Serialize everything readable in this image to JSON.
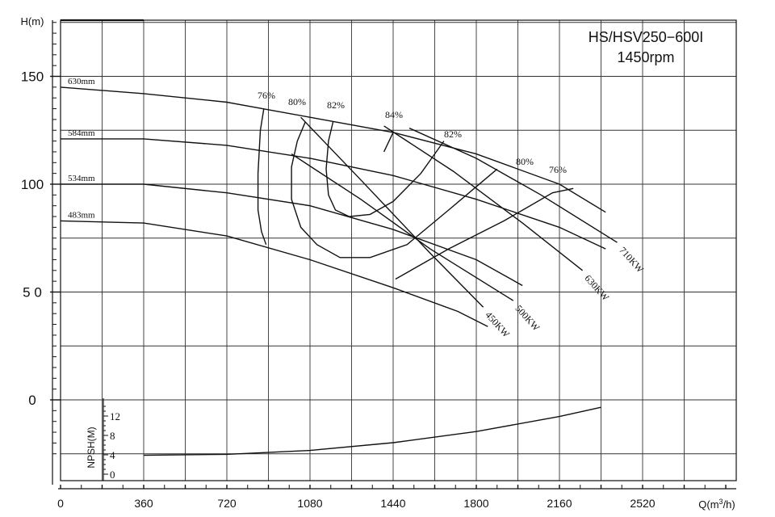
{
  "chart_data": {
    "type": "line",
    "title": "HS/HSV250−600I",
    "subtitle": "1450rpm",
    "ylabel": "H(m)",
    "x_axis": {
      "label_prefix": "Q(m",
      "label_sup": "3",
      "label_suffix": "/h)",
      "range": [
        0,
        2880
      ],
      "ticks": [
        0,
        360,
        720,
        1080,
        1440,
        1800,
        2160,
        2520
      ],
      "tick_labels": [
        "0",
        "360",
        "720",
        "1080",
        "1440",
        "1800",
        "2160",
        "2520"
      ]
    },
    "y_axis": {
      "range": [
        -37,
        176
      ],
      "ticks": [
        0,
        50,
        100,
        150
      ],
      "tick_labels": [
        "0",
        "5 0",
        "100",
        "150"
      ]
    },
    "npsh_axis": {
      "label": "NPSH(M)",
      "ticks": [
        0,
        4,
        8,
        12
      ],
      "tick_labels": [
        "0",
        "4",
        "8",
        "12"
      ]
    },
    "grid": true,
    "head_curves": [
      {
        "name": "630mm",
        "points": [
          [
            0,
            145
          ],
          [
            360,
            142
          ],
          [
            720,
            138
          ],
          [
            1080,
            131
          ],
          [
            1440,
            124
          ],
          [
            1800,
            114
          ],
          [
            2160,
            100
          ],
          [
            2360,
            87
          ]
        ]
      },
      {
        "name": "584mm",
        "points": [
          [
            0,
            121
          ],
          [
            360,
            121
          ],
          [
            720,
            118
          ],
          [
            1080,
            112
          ],
          [
            1440,
            104
          ],
          [
            1800,
            93
          ],
          [
            2160,
            80
          ],
          [
            2360,
            70
          ]
        ]
      },
      {
        "name": "534mm",
        "points": [
          [
            0,
            100
          ],
          [
            360,
            100
          ],
          [
            720,
            96
          ],
          [
            1080,
            90
          ],
          [
            1440,
            79
          ],
          [
            1800,
            65
          ],
          [
            2000,
            53
          ]
        ]
      },
      {
        "name": "483mm",
        "points": [
          [
            0,
            83
          ],
          [
            360,
            82
          ],
          [
            720,
            76
          ],
          [
            1080,
            65
          ],
          [
            1440,
            52
          ],
          [
            1720,
            41
          ],
          [
            1850,
            34
          ]
        ]
      }
    ],
    "efficiency_contours": [
      {
        "label": "76%",
        "points": [
          [
            880,
            135
          ],
          [
            865,
            125
          ],
          [
            855,
            105
          ],
          [
            855,
            88
          ],
          [
            870,
            78
          ],
          [
            890,
            72
          ]
        ]
      },
      {
        "label": "80%",
        "points": [
          [
            1060,
            129
          ],
          [
            1025,
            120
          ],
          [
            1000,
            108
          ],
          [
            1000,
            93
          ],
          [
            1040,
            80
          ],
          [
            1110,
            72
          ],
          [
            1210,
            66
          ],
          [
            1340,
            66
          ],
          [
            1500,
            72
          ],
          [
            1680,
            88
          ],
          [
            1890,
            107
          ]
        ]
      },
      {
        "label": "82%",
        "points": [
          [
            1180,
            129
          ],
          [
            1160,
            120
          ],
          [
            1150,
            107
          ],
          [
            1160,
            95
          ],
          [
            1190,
            88
          ],
          [
            1250,
            85
          ],
          [
            1340,
            86
          ],
          [
            1440,
            92
          ],
          [
            1560,
            105
          ],
          [
            1660,
            120
          ]
        ]
      },
      {
        "label": "84%",
        "points": [
          [
            1400,
            115
          ],
          [
            1440,
            124
          ]
        ]
      },
      {
        "label": "76%",
        "points": [
          [
            1450,
            56
          ],
          [
            1680,
            70
          ],
          [
            1920,
            83
          ],
          [
            2130,
            96
          ],
          [
            2220,
            98
          ]
        ]
      }
    ],
    "power_lines": [
      {
        "label": "450KW",
        "points": [
          [
            1040,
            131
          ],
          [
            1300,
            102
          ],
          [
            1600,
            68
          ],
          [
            1830,
            43
          ]
        ]
      },
      {
        "label": "500KW",
        "points": [
          [
            1000,
            114
          ],
          [
            1300,
            93
          ],
          [
            1600,
            70
          ],
          [
            1960,
            46
          ]
        ]
      },
      {
        "label": "630KW",
        "points": [
          [
            1400,
            127
          ],
          [
            1700,
            106
          ],
          [
            2000,
            82
          ],
          [
            2260,
            60
          ]
        ]
      },
      {
        "label": "710KW",
        "points": [
          [
            1510,
            126
          ],
          [
            1800,
            112
          ],
          [
            2080,
            95
          ],
          [
            2410,
            73
          ]
        ]
      }
    ],
    "npsh_curve": {
      "points": [
        [
          360,
          3.9
        ],
        [
          720,
          4.1
        ],
        [
          1080,
          4.9
        ],
        [
          1440,
          6.5
        ],
        [
          1800,
          8.8
        ],
        [
          2160,
          11.9
        ],
        [
          2340,
          13.8
        ]
      ]
    },
    "annotations": [
      "630mm",
      "584mm",
      "534mm",
      "483mm",
      "76%",
      "80%",
      "82%",
      "84%",
      "82%",
      "80%",
      "76%",
      "450KW",
      "500KW",
      "630KW",
      "710KW"
    ]
  }
}
